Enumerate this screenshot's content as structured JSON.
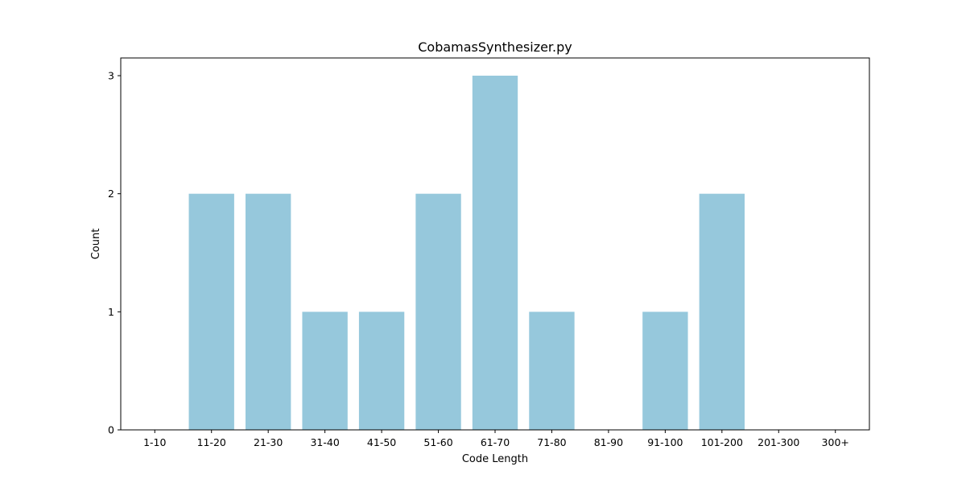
{
  "chart_data": {
    "type": "bar",
    "title": "CobamasSynthesizer.py",
    "xlabel": "Code Length",
    "ylabel": "Count",
    "categories": [
      "1-10",
      "11-20",
      "21-30",
      "31-40",
      "41-50",
      "51-60",
      "61-70",
      "71-80",
      "81-90",
      "91-100",
      "101-200",
      "201-300",
      "300+"
    ],
    "values": [
      0,
      2,
      2,
      1,
      1,
      2,
      3,
      1,
      0,
      1,
      2,
      0,
      0
    ],
    "yticks": [
      0,
      1,
      2,
      3
    ],
    "ylim": [
      0,
      3.15
    ],
    "bar_color": "#96c8dc",
    "grid": false,
    "legend": "none"
  }
}
